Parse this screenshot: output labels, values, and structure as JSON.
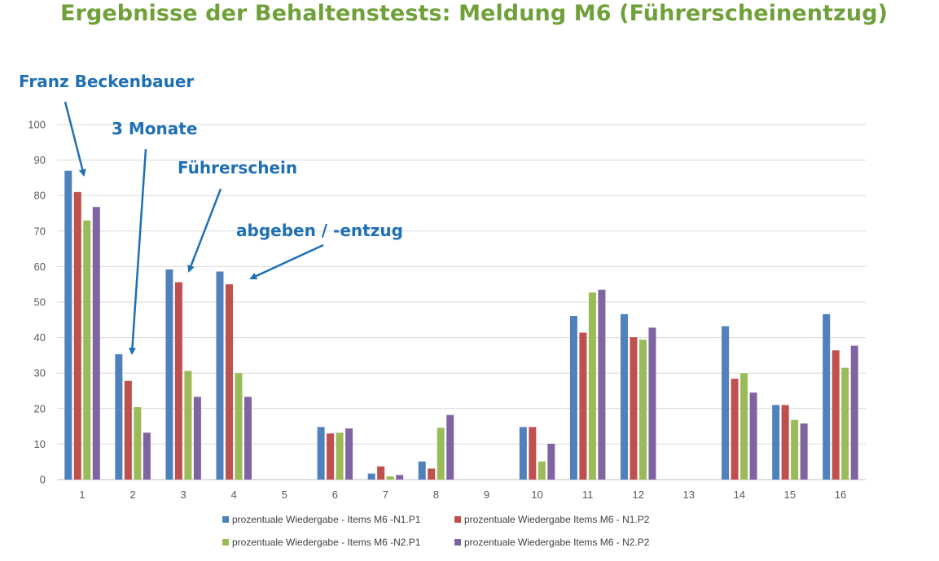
{
  "page": {
    "title": "Ergebnisse der Behaltenstests: Meldung M6 (Führerscheinentzug)",
    "title_color": "#70A03A"
  },
  "annotations": {
    "color": "#1F6FB5",
    "items": [
      {
        "id": "franz",
        "text": "Franz Beckenbauer",
        "target_category": "1"
      },
      {
        "id": "monate",
        "text": "3 Monate",
        "target_category": "2"
      },
      {
        "id": "fuehrerschein",
        "text": "Führerschein",
        "target_category": "3"
      },
      {
        "id": "abgeben",
        "text": "abgeben / -entzug",
        "target_category": "4"
      }
    ]
  },
  "chart_data": {
    "type": "bar",
    "title": "",
    "xlabel": "",
    "ylabel": "",
    "ylim": [
      0,
      100
    ],
    "yticks": [
      0,
      10,
      20,
      30,
      40,
      50,
      60,
      70,
      80,
      90,
      100
    ],
    "grid": true,
    "legend_position": "bottom",
    "categories": [
      "1",
      "2",
      "3",
      "4",
      "5",
      "6",
      "7",
      "8",
      "9",
      "10",
      "11",
      "12",
      "13",
      "14",
      "15",
      "16"
    ],
    "series": [
      {
        "name": "prozentuale Wiedergabe - Items M6 -N1.P1",
        "color": "#4F81BD",
        "values": [
          87,
          35.3,
          59.2,
          58.6,
          0,
          14.8,
          1.7,
          5.1,
          0,
          14.8,
          46.1,
          46.6,
          0,
          43.2,
          21,
          46.6
        ]
      },
      {
        "name": "prozentuale Wiedergabe Items M6 - N1.P2",
        "color": "#C0504D",
        "values": [
          81,
          27.8,
          55.6,
          55,
          0,
          13,
          3.7,
          3.1,
          0,
          14.8,
          41.4,
          40.1,
          0,
          28.4,
          21,
          36.4
        ]
      },
      {
        "name": "prozentuale Wiedergabe - Items M6 -N2.P1",
        "color": "#9BBB59",
        "values": [
          73,
          20.4,
          30.6,
          30,
          0,
          13.2,
          0.9,
          14.6,
          0,
          5.1,
          52.7,
          39.4,
          0,
          30,
          16.8,
          31.5
        ]
      },
      {
        "name": "prozentuale Wiedergabe Items M6 - N2.P2",
        "color": "#8064A2",
        "values": [
          76.8,
          13.2,
          23.3,
          23.3,
          0,
          14.4,
          1.3,
          18.2,
          0,
          10.1,
          53.5,
          42.8,
          0,
          24.5,
          15.8,
          37.7
        ]
      }
    ]
  }
}
